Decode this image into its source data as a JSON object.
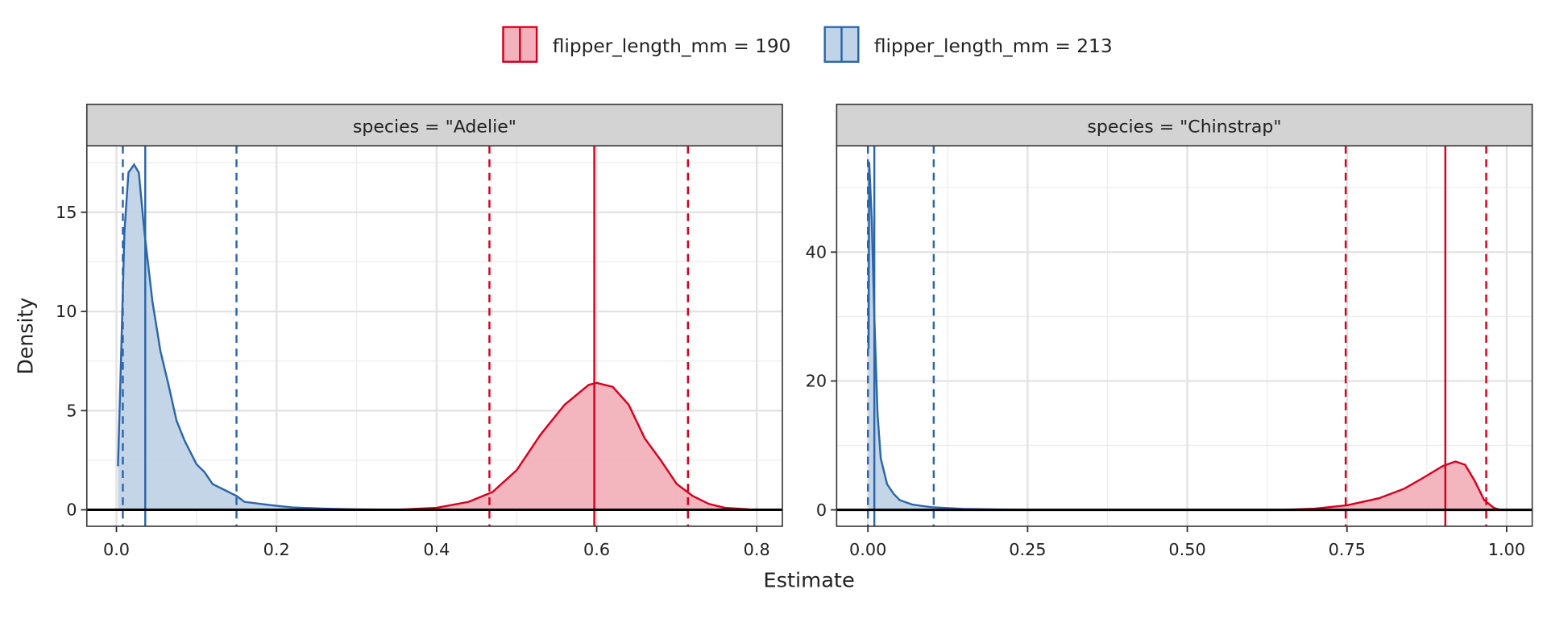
{
  "chart_data": {
    "type": "area",
    "xlabel": "Estimate",
    "ylabel": "Density",
    "legend": {
      "position": "top",
      "entries": [
        {
          "label": "flipper_length_mm = 190",
          "color": "#d7001e",
          "fill": "#f2b1bb"
        },
        {
          "label": "flipper_length_mm = 213",
          "color": "#2b66aa",
          "fill": "#c1d3e7"
        }
      ]
    },
    "panels": [
      {
        "strip": "species = \"Adelie\"",
        "xlim": [
          -0.037,
          0.832
        ],
        "ylim": [
          -0.83,
          18.35
        ],
        "xticks": [
          0,
          0.2,
          0.4,
          0.6,
          0.8
        ],
        "xtick_labels": [
          "0.0",
          "0.2",
          "0.4",
          "0.6",
          "0.8"
        ],
        "xminor": [
          0.1,
          0.3,
          0.5,
          0.7
        ],
        "yticks": [
          0,
          5,
          10,
          15
        ],
        "ytick_labels": [
          "0",
          "5",
          "10",
          "15"
        ],
        "yminor": [
          2.5,
          7.5,
          12.5,
          17.5
        ],
        "series": [
          {
            "series": 1,
            "median": 0.036,
            "interval": [
              0.008,
              0.15
            ],
            "x": [
              0.002,
              0.006,
              0.01,
              0.015,
              0.022,
              0.028,
              0.035,
              0.045,
              0.055,
              0.065,
              0.075,
              0.085,
              0.1,
              0.11,
              0.12,
              0.135,
              0.15,
              0.16,
              0.18,
              0.2,
              0.22,
              0.26,
              0.3,
              0.35
            ],
            "y": [
              2.2,
              8,
              14,
              17,
              17.4,
              17,
              14,
              10.5,
              8,
              6.3,
              4.5,
              3.5,
              2.3,
              1.9,
              1.3,
              1.0,
              0.7,
              0.4,
              0.3,
              0.2,
              0.12,
              0.06,
              0.02,
              0.0
            ]
          },
          {
            "series": 0,
            "median": 0.597,
            "interval": [
              0.466,
              0.714
            ],
            "x": [
              0.35,
              0.4,
              0.44,
              0.47,
              0.5,
              0.53,
              0.56,
              0.59,
              0.6,
              0.62,
              0.64,
              0.66,
              0.68,
              0.7,
              0.72,
              0.74,
              0.76,
              0.79
            ],
            "y": [
              0,
              0.1,
              0.4,
              0.9,
              2.0,
              3.8,
              5.3,
              6.3,
              6.4,
              6.2,
              5.3,
              3.6,
              2.5,
              1.3,
              0.7,
              0.3,
              0.1,
              0.02
            ]
          }
        ]
      },
      {
        "strip": "species = \"Chinstrap\"",
        "xlim": [
          -0.049,
          1.04
        ],
        "ylim": [
          -2.55,
          56.5
        ],
        "xticks": [
          0,
          0.25,
          0.5,
          0.75,
          1.0
        ],
        "xtick_labels": [
          "0.00",
          "0.25",
          "0.50",
          "0.75",
          "1.00"
        ],
        "xminor": [
          0.125,
          0.375,
          0.625,
          0.875
        ],
        "yticks": [
          0,
          20,
          40
        ],
        "ytick_labels": [
          "0",
          "20",
          "40"
        ],
        "yminor": [
          10,
          30,
          50
        ],
        "series": [
          {
            "series": 1,
            "median": 0.01,
            "interval": [
              0.0,
              0.103
            ],
            "x": [
              0.001,
              0.002,
              0.006,
              0.01,
              0.015,
              0.02,
              0.03,
              0.04,
              0.05,
              0.07,
              0.1,
              0.15,
              0.25
            ],
            "y": [
              25,
              54,
              45,
              30,
              15,
              8,
              4,
              2.5,
              1.5,
              0.8,
              0.4,
              0.15,
              0
            ]
          },
          {
            "series": 0,
            "median": 0.904,
            "interval": [
              0.748,
              0.968
            ],
            "x": [
              0.65,
              0.7,
              0.75,
              0.8,
              0.84,
              0.87,
              0.9,
              0.92,
              0.935,
              0.95,
              0.965,
              0.98,
              0.99
            ],
            "y": [
              0,
              0.2,
              0.7,
              1.8,
              3.3,
              5,
              6.8,
              7.5,
              7,
              4.5,
              1.5,
              0.3,
              0
            ]
          }
        ]
      }
    ]
  }
}
